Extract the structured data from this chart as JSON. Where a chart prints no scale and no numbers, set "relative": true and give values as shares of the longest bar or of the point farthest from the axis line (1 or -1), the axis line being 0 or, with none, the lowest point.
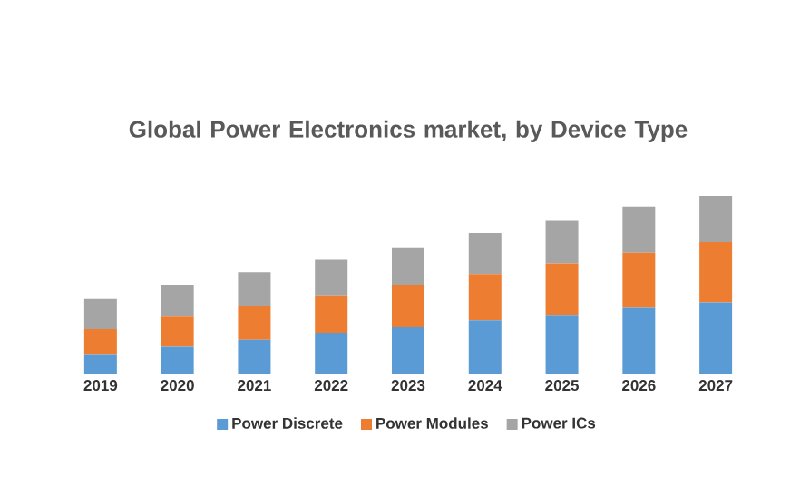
{
  "chart_data": {
    "type": "bar",
    "title": "Global Power Electronics market, by Device Type",
    "relative": true,
    "stacked": true,
    "legend": "bottom",
    "grid": false,
    "categories": [
      "2019",
      "2020",
      "2021",
      "2022",
      "2023",
      "2024",
      "2025",
      "2026",
      "2027"
    ],
    "series": [
      {
        "name": "Power Discrete",
        "color": "#5b9bd5",
        "values": [
          0.11,
          0.15,
          0.19,
          0.23,
          0.26,
          0.3,
          0.33,
          0.37,
          0.4
        ]
      },
      {
        "name": "Power Modules",
        "color": "#ed7d31",
        "values": [
          0.14,
          0.17,
          0.19,
          0.21,
          0.24,
          0.26,
          0.29,
          0.31,
          0.34
        ]
      },
      {
        "name": "Power ICs",
        "color": "#a5a5a5",
        "values": [
          0.17,
          0.18,
          0.19,
          0.2,
          0.21,
          0.23,
          0.24,
          0.26,
          0.26
        ]
      }
    ]
  }
}
